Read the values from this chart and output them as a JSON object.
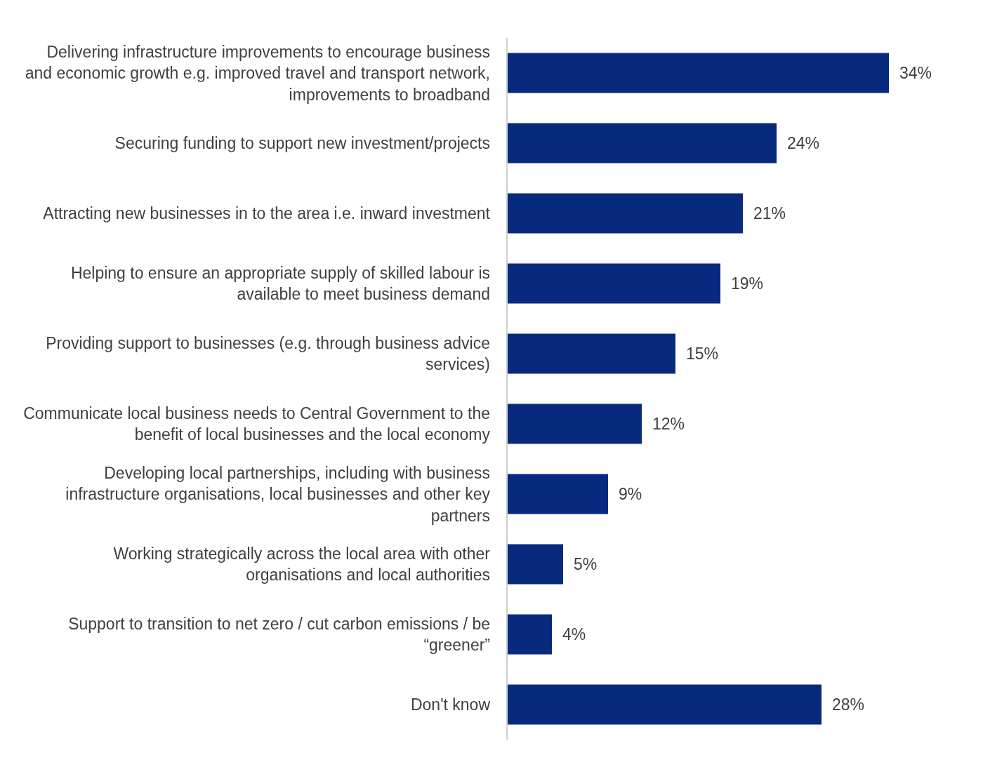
{
  "chart_data": {
    "type": "bar",
    "orientation": "horizontal",
    "relative": false,
    "categories": [
      "Delivering infrastructure improvements to encourage business and economic growth e.g. improved travel and transport network, improvements to broadband",
      "Securing funding to support new investment/projects",
      "Attracting new businesses in to the area i.e. inward investment",
      "Helping to ensure an appropriate supply of skilled labour is available to meet business demand",
      "Providing support to businesses (e.g. through business advice services)",
      "Communicate local business needs to Central Government to the benefit of local businesses and the local economy",
      "Developing local partnerships, including with business infrastructure organisations, local businesses and other key partners",
      "Working strategically across the local area with other organisations and local authorities",
      "Support to transition to net zero / cut carbon emissions / be “greener”",
      "Don't know"
    ],
    "values": [
      34,
      24,
      21,
      19,
      15,
      12,
      9,
      5,
      4,
      28
    ],
    "value_labels": [
      "34%",
      "24%",
      "21%",
      "19%",
      "15%",
      "12%",
      "9%",
      "5%",
      "4%",
      "28%"
    ],
    "color": "#082a7e"
  }
}
